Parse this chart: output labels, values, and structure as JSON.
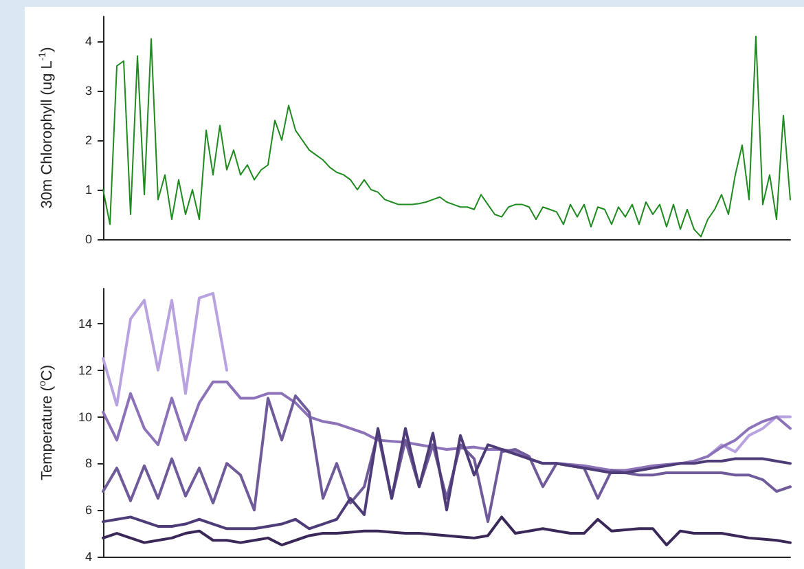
{
  "chart_data": [
    {
      "type": "line",
      "ylabel": "30m Chlorophyll (ug L$^{-1}$)",
      "categories": [
        null,
        null,
        null,
        null,
        null,
        null,
        null,
        null,
        null,
        null,
        null,
        null,
        null,
        null,
        null,
        null,
        null,
        null,
        null,
        null,
        null,
        null,
        null,
        null,
        null,
        null,
        null,
        null,
        null,
        null,
        null,
        null,
        null,
        null,
        null,
        null,
        null,
        null,
        null,
        null,
        null,
        null,
        null,
        null,
        null,
        null,
        null,
        null,
        null,
        null,
        null,
        null,
        null,
        null,
        null,
        null,
        null,
        null,
        null,
        null,
        null,
        null,
        null,
        null,
        null,
        null,
        null,
        null,
        null,
        null,
        null,
        null,
        null,
        null,
        null,
        null,
        null,
        null,
        null,
        null,
        null,
        null,
        null,
        null,
        null,
        null,
        null,
        null,
        null,
        null,
        null,
        null,
        null,
        null,
        null,
        null,
        null,
        null,
        null,
        null,
        null
      ],
      "ylim": [
        0,
        4.5
      ],
      "yticks": [
        0,
        1,
        2,
        3,
        4
      ],
      "tick_labels": "y",
      "series": [
        {
          "color": "#1f8a1f",
          "values": [
            1.0,
            0.3,
            3.5,
            3.6,
            0.5,
            3.7,
            0.9,
            4.05,
            0.8,
            1.3,
            0.4,
            1.2,
            0.5,
            1.0,
            0.4,
            2.2,
            1.3,
            2.3,
            1.4,
            1.8,
            1.3,
            1.5,
            1.2,
            1.4,
            1.5,
            2.4,
            2.0,
            2.7,
            2.2,
            2.0,
            1.8,
            1.7,
            1.6,
            1.45,
            1.35,
            1.3,
            1.2,
            1.0,
            1.2,
            1.0,
            0.95,
            0.8,
            0.75,
            0.7,
            0.7,
            0.7,
            0.72,
            0.75,
            0.8,
            0.85,
            0.75,
            0.7,
            0.65,
            0.65,
            0.6,
            0.9,
            0.7,
            0.5,
            0.45,
            0.65,
            0.7,
            0.7,
            0.65,
            0.4,
            0.65,
            0.6,
            0.55,
            0.3,
            0.7,
            0.45,
            0.7,
            0.25,
            0.65,
            0.6,
            0.3,
            0.65,
            0.45,
            0.7,
            0.3,
            0.75,
            0.5,
            0.7,
            0.25,
            0.7,
            0.2,
            0.6,
            0.2,
            0.05,
            0.4,
            0.6,
            0.9,
            0.5,
            1.3,
            1.9,
            0.8,
            4.1,
            0.7,
            1.3,
            0.4,
            2.5,
            0.8
          ]
        }
      ]
    },
    {
      "type": "line",
      "ylabel": "Temperature ($^{o}$C)",
      "categories": [
        null,
        null,
        null,
        null,
        null,
        null,
        null,
        null,
        null,
        null,
        null,
        null,
        null,
        null,
        null,
        null,
        null,
        null,
        null,
        null,
        null,
        null,
        null,
        null,
        null,
        null,
        null,
        null,
        null,
        null,
        null,
        null,
        null,
        null,
        null,
        null,
        null,
        null,
        null,
        null,
        null,
        null,
        null,
        null,
        null,
        null,
        null,
        null,
        null,
        null,
        null
      ],
      "ylim": [
        4,
        15.5
      ],
      "yticks": [
        4,
        6,
        8,
        10,
        12,
        14
      ],
      "tick_labels": "y",
      "series": [
        {
          "color": "#b8a2e0",
          "values": [
            12.5,
            10.5,
            14.2,
            15.0,
            12.0,
            15.0,
            11.0,
            15.1,
            15.3,
            12.0,
            null,
            null,
            null,
            null,
            null,
            null,
            null,
            null,
            null,
            null,
            null,
            null,
            null,
            null,
            null,
            null,
            null,
            null,
            null,
            null,
            null,
            null,
            null,
            null,
            null,
            null,
            null,
            null,
            null,
            null,
            null,
            null,
            null,
            null,
            8.3,
            8.8,
            8.5,
            9.2,
            9.5,
            10.0,
            10.0
          ]
        },
        {
          "color": "#8c72b8",
          "values": [
            10.2,
            9.0,
            11.0,
            9.5,
            8.8,
            10.8,
            9.0,
            10.6,
            11.5,
            11.5,
            10.8,
            10.8,
            11.0,
            11.0,
            10.6,
            10.0,
            9.8,
            9.7,
            9.5,
            9.3,
            9.0,
            8.95,
            8.9,
            8.8,
            8.7,
            8.6,
            8.65,
            8.7,
            8.6,
            8.6,
            8.5,
            8.2,
            8.0,
            8.0,
            7.95,
            7.9,
            7.8,
            7.7,
            7.7,
            7.8,
            7.9,
            7.95,
            8.0,
            8.1,
            8.3,
            8.7,
            9.0,
            9.5,
            9.8,
            10.0,
            9.5
          ]
        },
        {
          "color": "#6f5a9a",
          "values": [
            6.8,
            7.8,
            6.4,
            7.9,
            6.5,
            8.2,
            6.6,
            7.8,
            6.3,
            8.0,
            7.5,
            6.0,
            10.8,
            9.0,
            10.9,
            10.2,
            6.5,
            8.0,
            6.3,
            7.0,
            9.3,
            6.5,
            9.0,
            7.0,
            8.8,
            6.5,
            8.8,
            8.2,
            5.5,
            8.5,
            8.6,
            8.3,
            7.0,
            8.0,
            7.9,
            7.8,
            6.5,
            7.7,
            7.6,
            7.5,
            7.5,
            7.6,
            7.6,
            7.6,
            7.6,
            7.6,
            7.5,
            7.5,
            7.3,
            6.8,
            7.0
          ]
        },
        {
          "color": "#4e3c78",
          "values": [
            5.5,
            5.6,
            5.7,
            5.5,
            5.3,
            5.3,
            5.4,
            5.6,
            5.4,
            5.2,
            5.2,
            5.2,
            5.3,
            5.4,
            5.6,
            5.2,
            5.4,
            5.6,
            6.5,
            5.8,
            9.5,
            6.5,
            9.5,
            7.0,
            9.3,
            6.0,
            9.2,
            7.5,
            8.8,
            8.6,
            8.4,
            8.2,
            8.0,
            8.0,
            7.9,
            7.8,
            7.7,
            7.6,
            7.6,
            7.7,
            7.8,
            7.9,
            8.0,
            8.0,
            8.1,
            8.1,
            8.2,
            8.2,
            8.2,
            8.1,
            8.0
          ]
        },
        {
          "color": "#3a2858",
          "values": [
            4.8,
            5.0,
            4.8,
            4.6,
            4.7,
            4.8,
            5.0,
            5.1,
            4.7,
            4.7,
            4.6,
            4.7,
            4.8,
            4.5,
            4.7,
            4.9,
            5.0,
            5.0,
            5.05,
            5.1,
            5.1,
            5.05,
            5.0,
            5.0,
            4.95,
            4.9,
            4.85,
            4.8,
            4.9,
            5.7,
            5.0,
            5.1,
            5.2,
            5.1,
            5.0,
            5.0,
            5.6,
            5.1,
            5.15,
            5.2,
            5.2,
            4.5,
            5.1,
            5.0,
            5.0,
            5.0,
            4.9,
            4.8,
            4.75,
            4.7,
            4.6
          ]
        }
      ]
    }
  ]
}
